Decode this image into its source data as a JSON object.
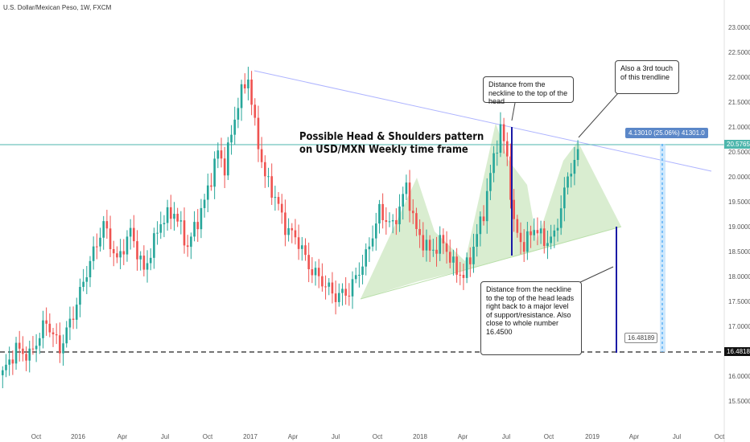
{
  "symbol_title": "U.S. Dollar/Mexican Peso, 1W, FXCM",
  "headline": {
    "line1": "Possible Head & Shoulders pattern",
    "line2": "on USD/MXN Weekly time frame"
  },
  "callouts": {
    "neckline_distance": "Distance from the neckline to the top of the head",
    "third_touch": "Also a 3rd touch of this trendline",
    "target": "Distance from the neckline to the top of the head leads right back to a major level of support/resistance. Also close to whole number 16.4500"
  },
  "measure_label": "4.13010 (25.06%) 41301.0",
  "price_labels": {
    "current": "20.57650",
    "support": "16.48189",
    "support_small": "16.48189"
  },
  "colors": {
    "up": "#26a69a",
    "down": "#ef5350",
    "pattern_fill": "#b9dfa9",
    "trendline": "#aeb4ff",
    "current_line": "#4db6ac",
    "measure": "#2196f3",
    "projection": "#1a1aa6"
  },
  "chart_data": {
    "type": "candlestick",
    "timeframe": "1W",
    "x_tick_labels": [
      "Oct",
      "2016",
      "Apr",
      "Jul",
      "Oct",
      "2017",
      "Apr",
      "Jul",
      "Oct",
      "2018",
      "Apr",
      "Jul",
      "Oct",
      "2019",
      "Apr",
      "Jul",
      "Oct"
    ],
    "y_tick_labels": [
      "15.50000",
      "16.00000",
      "16.50000",
      "17.00000",
      "17.50000",
      "18.00000",
      "18.50000",
      "19.00000",
      "19.50000",
      "20.00000",
      "20.50000",
      "21.00000",
      "21.50000",
      "22.00000",
      "22.50000",
      "23.00000"
    ],
    "ylim": [
      15.25,
      23.2
    ],
    "current_price": 20.5765,
    "support_level": 16.48189,
    "path": [
      [
        0,
        16.05
      ],
      [
        4,
        16.55
      ],
      [
        8,
        16.4
      ],
      [
        13,
        17.1
      ],
      [
        17,
        16.55
      ],
      [
        21,
        17.25
      ],
      [
        25,
        18.1
      ],
      [
        30,
        19.05
      ],
      [
        34,
        18.3
      ],
      [
        38,
        18.9
      ],
      [
        42,
        18.1
      ],
      [
        47,
        19.1
      ],
      [
        51,
        19.3
      ],
      [
        55,
        18.6
      ],
      [
        60,
        19.5
      ],
      [
        64,
        20.5
      ],
      [
        66,
        20.2
      ],
      [
        70,
        21.5
      ],
      [
        73,
        22.0
      ],
      [
        75,
        21.0
      ],
      [
        78,
        20.0
      ],
      [
        81,
        19.6
      ],
      [
        84,
        19.0
      ],
      [
        88,
        18.7
      ],
      [
        91,
        18.2
      ],
      [
        95,
        17.9
      ],
      [
        99,
        17.6
      ],
      [
        103,
        17.7
      ],
      [
        108,
        18.4
      ],
      [
        112,
        19.3
      ],
      [
        116,
        19.0
      ],
      [
        120,
        19.8
      ],
      [
        123,
        18.9
      ],
      [
        127,
        18.5
      ],
      [
        131,
        18.7
      ],
      [
        134,
        18.2
      ],
      [
        137,
        18.0
      ],
      [
        140,
        18.6
      ],
      [
        143,
        19.3
      ],
      [
        146,
        20.4
      ],
      [
        148,
        20.95
      ],
      [
        150,
        20.4
      ],
      [
        152,
        19.0
      ],
      [
        155,
        18.6
      ],
      [
        158,
        19.0
      ],
      [
        161,
        18.7
      ],
      [
        164,
        18.8
      ],
      [
        167,
        19.7
      ],
      [
        169,
        20.2
      ],
      [
        171,
        20.45
      ]
    ]
  }
}
